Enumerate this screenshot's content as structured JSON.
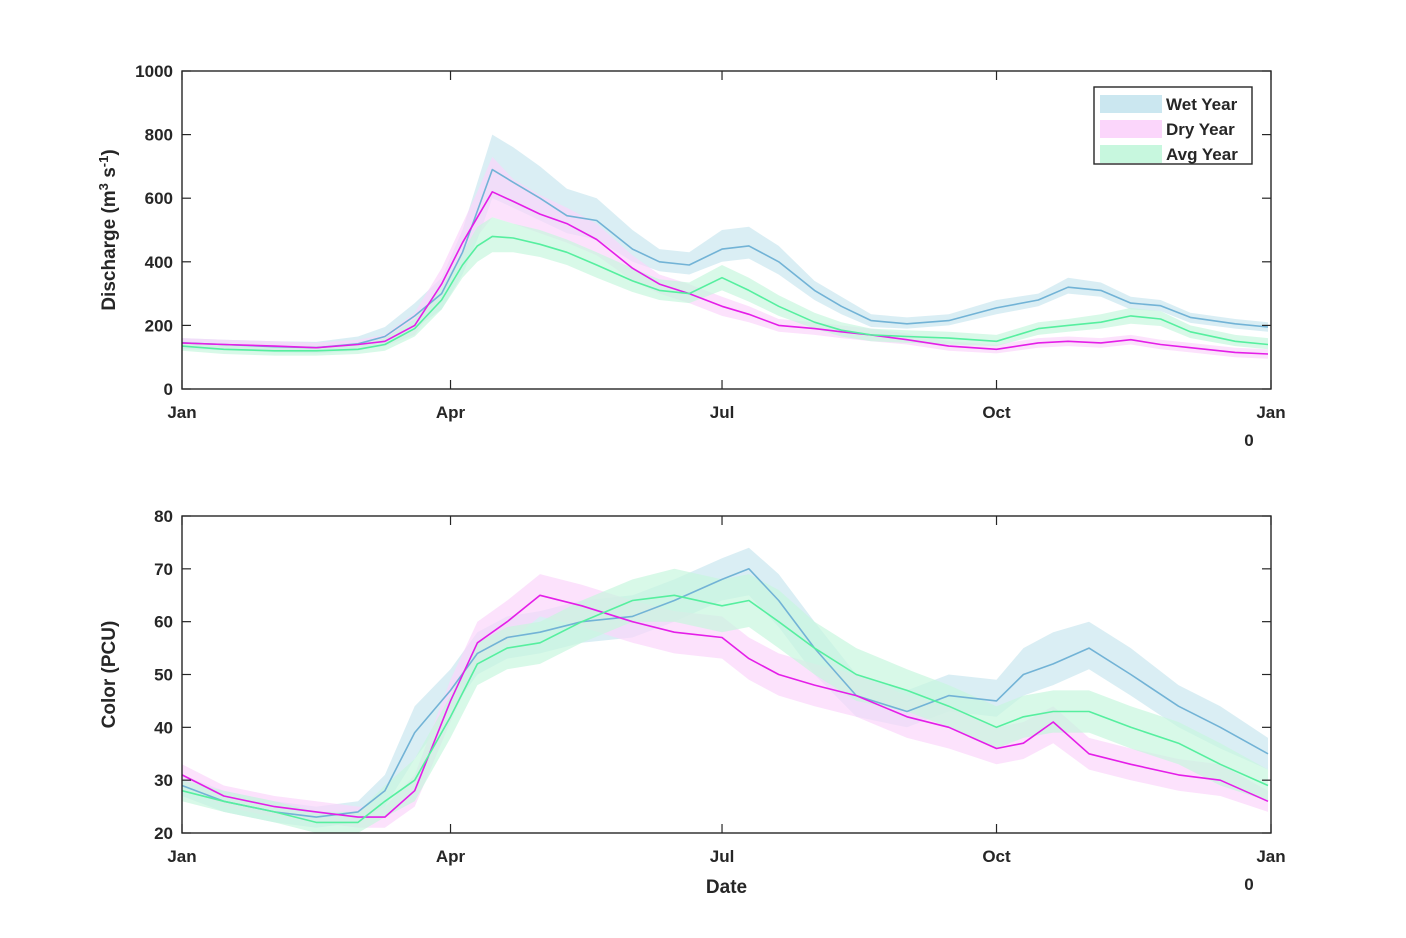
{
  "colors": {
    "wet_line": "#72b3d6",
    "wet_band": "#cbe7f0",
    "dry_line": "#e41ee8",
    "dry_band": "#fbd6fb",
    "avg_line": "#56ef9f",
    "avg_band": "#c7f7de",
    "axis": "#262626"
  },
  "legend": {
    "placement": "top-right",
    "items": [
      "Wet Year",
      "Dry Year",
      "Avg Year"
    ]
  },
  "chart_data": [
    {
      "type": "line",
      "x_axis_type": "date",
      "title": "",
      "ylabel": "Discharge (m",
      "ylabel_sup1": "3",
      "ylabel_mid": " s",
      "ylabel_sup2": "-1",
      "ylabel_end": ")",
      "xlabel": "",
      "xlim": [
        "Jan 1",
        "Jan 1 (next year)"
      ],
      "ylim": [
        0,
        1000
      ],
      "yticks": [
        0,
        200,
        400,
        600,
        800,
        1000
      ],
      "xtick_labels": [
        "Jan",
        "Apr",
        "Jul",
        "Oct",
        "Jan"
      ],
      "x_offset_label": "0",
      "grid": false,
      "x": [
        "Jan 1",
        "Jan 15",
        "Feb 1",
        "Feb 15",
        "Mar 1",
        "Mar 10",
        "Mar 20",
        "Mar 29",
        "Apr 5",
        "Apr 10",
        "Apr 15",
        "Apr 22",
        "May 1",
        "May 10",
        "May 20",
        "Jun 1",
        "Jun 10",
        "Jun 20",
        "Jul 1",
        "Jul 10",
        "Jul 20",
        "Aug 1",
        "Aug 10",
        "Aug 20",
        "Sep 1",
        "Sep 15",
        "Oct 1",
        "Oct 15",
        "Oct 25",
        "Nov 5",
        "Nov 15",
        "Nov 25",
        "Dec 5",
        "Dec 20",
        "Dec 31"
      ],
      "series": [
        {
          "name": "Wet Year",
          "values": [
            145,
            140,
            133,
            130,
            142,
            165,
            230,
            300,
            430,
            560,
            690,
            650,
            600,
            545,
            530,
            440,
            400,
            390,
            440,
            450,
            400,
            310,
            260,
            215,
            205,
            215,
            255,
            280,
            320,
            310,
            270,
            262,
            225,
            205,
            195
          ],
          "lower": [
            125,
            122,
            115,
            112,
            120,
            140,
            190,
            250,
            360,
            470,
            600,
            570,
            530,
            490,
            470,
            400,
            370,
            360,
            400,
            410,
            360,
            280,
            235,
            195,
            190,
            200,
            235,
            260,
            300,
            290,
            250,
            245,
            208,
            190,
            180
          ],
          "upper": [
            160,
            155,
            150,
            148,
            165,
            195,
            270,
            350,
            500,
            650,
            800,
            760,
            700,
            630,
            600,
            500,
            440,
            430,
            500,
            510,
            450,
            340,
            290,
            235,
            225,
            235,
            280,
            300,
            350,
            335,
            290,
            280,
            240,
            220,
            210
          ]
        },
        {
          "name": "Dry Year",
          "values": [
            145,
            140,
            135,
            130,
            140,
            150,
            200,
            330,
            460,
            540,
            620,
            590,
            550,
            520,
            470,
            380,
            330,
            300,
            260,
            235,
            200,
            190,
            180,
            170,
            155,
            135,
            125,
            145,
            150,
            145,
            155,
            140,
            130,
            115,
            110
          ],
          "lower": [
            130,
            125,
            120,
            115,
            125,
            135,
            170,
            290,
            410,
            480,
            540,
            520,
            490,
            460,
            420,
            340,
            300,
            270,
            230,
            210,
            180,
            170,
            160,
            150,
            140,
            120,
            112,
            130,
            135,
            130,
            140,
            125,
            115,
            100,
            95
          ],
          "upper": [
            160,
            155,
            150,
            145,
            155,
            170,
            240,
            380,
            520,
            620,
            730,
            660,
            610,
            570,
            520,
            420,
            360,
            330,
            290,
            260,
            220,
            210,
            200,
            190,
            175,
            150,
            140,
            160,
            165,
            160,
            170,
            155,
            145,
            130,
            125
          ]
        },
        {
          "name": "Avg Year",
          "values": [
            135,
            125,
            120,
            120,
            125,
            140,
            190,
            280,
            390,
            450,
            480,
            475,
            455,
            430,
            390,
            340,
            310,
            300,
            350,
            310,
            260,
            210,
            185,
            170,
            165,
            160,
            150,
            190,
            200,
            210,
            230,
            220,
            180,
            150,
            140
          ],
          "lower": [
            120,
            110,
            105,
            105,
            110,
            120,
            165,
            250,
            350,
            400,
            430,
            430,
            415,
            390,
            350,
            305,
            280,
            270,
            310,
            275,
            230,
            190,
            165,
            150,
            145,
            140,
            135,
            170,
            180,
            190,
            205,
            198,
            160,
            135,
            125
          ],
          "upper": [
            150,
            140,
            135,
            135,
            140,
            160,
            220,
            320,
            430,
            510,
            540,
            520,
            500,
            470,
            430,
            380,
            345,
            335,
            390,
            350,
            295,
            240,
            210,
            190,
            185,
            180,
            170,
            210,
            220,
            235,
            255,
            245,
            200,
            170,
            160
          ]
        }
      ]
    },
    {
      "type": "line",
      "x_axis_type": "date",
      "title": "",
      "ylabel": "Color (PCU)",
      "xlabel": "Date",
      "xlim": [
        "Jan 1",
        "Jan 1 (next year)"
      ],
      "ylim": [
        20,
        80
      ],
      "yticks": [
        20,
        30,
        40,
        50,
        60,
        70,
        80
      ],
      "xtick_labels": [
        "Jan",
        "Apr",
        "Jul",
        "Oct",
        "Jan"
      ],
      "x_offset_label": "0",
      "grid": false,
      "x": [
        "Jan 1",
        "Jan 15",
        "Feb 1",
        "Feb 15",
        "Mar 1",
        "Mar 10",
        "Mar 20",
        "Apr 1",
        "Apr 10",
        "Apr 20",
        "May 1",
        "May 15",
        "Jun 1",
        "Jun 15",
        "Jul 1",
        "Jul 10",
        "Jul 20",
        "Aug 1",
        "Aug 15",
        "Sep 1",
        "Sep 15",
        "Oct 1",
        "Oct 10",
        "Oct 20",
        "Nov 1",
        "Nov 15",
        "Dec 1",
        "Dec 15",
        "Dec 31"
      ],
      "series": [
        {
          "name": "Wet Year",
          "values": [
            29,
            26,
            24,
            23,
            24,
            28,
            39,
            47,
            54,
            57,
            58,
            60,
            61,
            64,
            68,
            70,
            64,
            55,
            46,
            43,
            46,
            45,
            50,
            52,
            55,
            50,
            44,
            40,
            35
          ],
          "lower": [
            27,
            24,
            22,
            21,
            22,
            25,
            34,
            43,
            50,
            53,
            54,
            56,
            57,
            60,
            64,
            65,
            59,
            50,
            42,
            40,
            43,
            42,
            46,
            48,
            51,
            46,
            40,
            36,
            32
          ],
          "upper": [
            31,
            28,
            26,
            25,
            26,
            31,
            44,
            51,
            58,
            61,
            62,
            64,
            65,
            68,
            72,
            74,
            69,
            60,
            50,
            47,
            50,
            49,
            55,
            58,
            60,
            55,
            48,
            44,
            38
          ]
        },
        {
          "name": "Dry Year",
          "values": [
            31,
            27,
            25,
            24,
            23,
            23,
            28,
            45,
            56,
            60,
            65,
            63,
            60,
            58,
            57,
            53,
            50,
            48,
            46,
            42,
            40,
            36,
            37,
            41,
            35,
            33,
            31,
            30,
            26
          ],
          "lower": [
            29,
            25,
            23,
            22,
            21,
            21,
            25,
            41,
            52,
            56,
            61,
            59,
            56,
            54,
            53,
            49,
            46,
            44,
            42,
            38,
            36,
            33,
            34,
            37,
            32,
            30,
            28,
            27,
            24
          ],
          "upper": [
            33,
            29,
            27,
            26,
            25,
            25,
            31,
            49,
            60,
            64,
            69,
            67,
            64,
            62,
            61,
            57,
            54,
            52,
            50,
            46,
            44,
            40,
            41,
            44,
            38,
            36,
            34,
            33,
            28
          ]
        },
        {
          "name": "Avg Year",
          "values": [
            28,
            26,
            24,
            22,
            22,
            26,
            30,
            42,
            52,
            55,
            56,
            60,
            64,
            65,
            63,
            64,
            60,
            55,
            50,
            47,
            44,
            40,
            42,
            43,
            43,
            40,
            37,
            33,
            29
          ],
          "lower": [
            26,
            24,
            22,
            20,
            20,
            23,
            26,
            38,
            48,
            51,
            52,
            56,
            60,
            60,
            58,
            59,
            55,
            50,
            45,
            43,
            40,
            36,
            38,
            39,
            39,
            36,
            33,
            29,
            26
          ],
          "upper": [
            30,
            28,
            26,
            24,
            24,
            29,
            34,
            46,
            56,
            59,
            60,
            64,
            68,
            70,
            68,
            69,
            66,
            60,
            55,
            51,
            48,
            44,
            46,
            47,
            47,
            44,
            41,
            37,
            32
          ]
        }
      ]
    }
  ]
}
